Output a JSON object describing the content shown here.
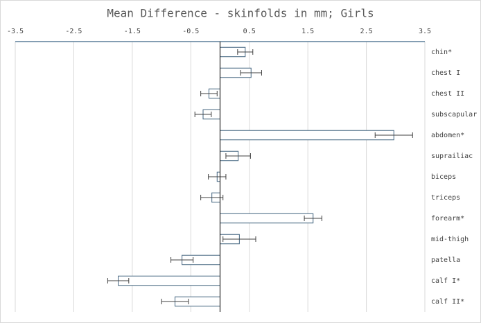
{
  "chart_data": {
    "type": "hbar",
    "title": "Mean Difference - skinfolds in mm; Girls",
    "categories": [
      "chin*",
      "chest I",
      "chest II",
      "subscapular",
      "abdomen*",
      "suprailiac",
      "biceps",
      "triceps",
      "forearm*",
      "mid-thigh",
      "patella",
      "calf I*",
      "calf II*"
    ],
    "values": [
      0.43,
      0.53,
      -0.19,
      -0.29,
      2.97,
      0.31,
      -0.05,
      -0.14,
      1.59,
      0.33,
      -0.65,
      -1.74,
      -0.77
    ],
    "errors": [
      0.13,
      0.18,
      0.14,
      0.14,
      0.32,
      0.21,
      0.15,
      0.19,
      0.15,
      0.28,
      0.19,
      0.18,
      0.23
    ],
    "color": "#41627e",
    "xlim": [
      -3.5,
      3.5
    ],
    "xticks": [
      -3.5,
      -2.5,
      -1.5,
      -0.5,
      0.5,
      1.5,
      2.5,
      3.5
    ],
    "grid": true
  }
}
